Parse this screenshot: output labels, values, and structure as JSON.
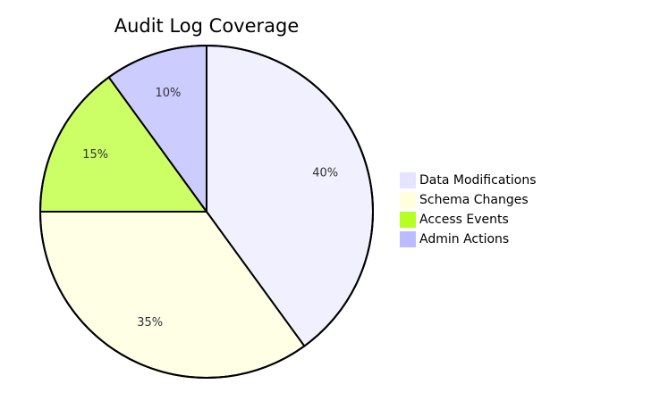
{
  "chart_data": {
    "type": "pie",
    "title": "Audit Log Coverage",
    "categories": [
      "Data Modifications",
      "Schema Changes",
      "Access Events",
      "Admin Actions"
    ],
    "values": [
      40,
      35,
      15,
      10
    ],
    "labels": [
      "40%",
      "35%",
      "15%",
      "10%"
    ],
    "colors": [
      "#f0f0ff",
      "#ffffe6",
      "#ccff66",
      "#ccccff"
    ],
    "legend_colors": [
      "#e4e4ff",
      "#ffffdd",
      "#b5ff22",
      "#bbbbff"
    ],
    "outline_color": "#000000",
    "start_angle": "12 o'clock",
    "direction": "clockwise",
    "legend_position": "right"
  }
}
